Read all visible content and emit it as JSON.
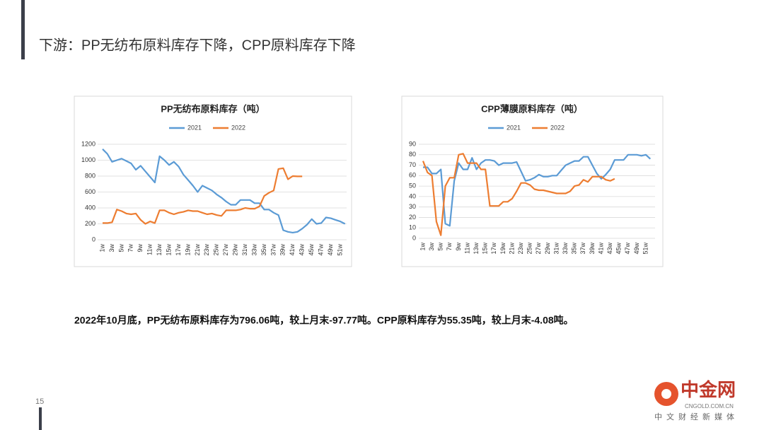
{
  "page_title": "下游：PP无纺布原料库存下降，CPP原料库存下降",
  "summary": "2022年10月底，PP无纺布原料库存为796.06吨，较上月末-97.77吨。CPP原料库存为55.35吨，较上月末-4.08吨。",
  "page_number": "15",
  "watermark": {
    "name": "中金网",
    "url": "CNGOLD.COM.CN",
    "slogan": "中文财经新媒体"
  },
  "chart_data": [
    {
      "type": "line",
      "title": "PP无纺布原料库存（吨）",
      "categories": [
        "1w",
        null,
        "3w",
        null,
        "5w",
        null,
        "7w",
        null,
        "9w",
        null,
        "11w",
        null,
        "13w",
        null,
        "15w",
        null,
        "17w",
        null,
        "19w",
        null,
        "21w",
        null,
        "23w",
        null,
        "25w",
        null,
        "27w",
        null,
        "29w",
        null,
        "31w",
        null,
        "33w",
        null,
        "35w",
        null,
        "37w",
        null,
        "39w",
        null,
        "41w",
        null,
        "43w",
        null,
        "45w",
        null,
        "47w",
        null,
        "49w",
        null,
        "51w",
        null
      ],
      "series": [
        {
          "name": "2021",
          "color": "#5b9bd5",
          "values": [
            1140,
            1080,
            980,
            1000,
            1020,
            990,
            960,
            880,
            930,
            860,
            790,
            720,
            1050,
            1000,
            940,
            980,
            920,
            820,
            750,
            680,
            600,
            680,
            650,
            620,
            570,
            530,
            480,
            440,
            440,
            500,
            500,
            500,
            460,
            460,
            380,
            380,
            340,
            310,
            120,
            100,
            90,
            100,
            140,
            190,
            260,
            200,
            210,
            280,
            270,
            250,
            230,
            200
          ]
        },
        {
          "name": "2022",
          "color": "#ed7d31",
          "values": [
            210,
            210,
            220,
            380,
            360,
            330,
            320,
            330,
            250,
            200,
            230,
            210,
            370,
            370,
            340,
            320,
            340,
            350,
            370,
            360,
            360,
            340,
            320,
            330,
            310,
            300,
            370,
            370,
            370,
            380,
            400,
            390,
            390,
            420,
            550,
            590,
            620,
            890,
            900,
            760,
            800,
            796,
            796,
            null,
            null,
            null,
            null,
            null,
            null,
            null,
            null,
            null
          ]
        }
      ],
      "ylim": [
        0,
        1200
      ],
      "yticks": [
        0,
        200,
        400,
        600,
        800,
        1000,
        1200
      ],
      "grid": true,
      "legend": "top"
    },
    {
      "type": "line",
      "title": "CPP薄膜原料库存（吨）",
      "categories": [
        "1w",
        null,
        "3w",
        null,
        "5w",
        null,
        "7w",
        null,
        "9w",
        null,
        "11w",
        null,
        "13w",
        null,
        "15w",
        null,
        "17w",
        null,
        "19w",
        null,
        "21w",
        null,
        "23w",
        null,
        "25w",
        null,
        "27w",
        null,
        "29w",
        null,
        "31w",
        null,
        "33w",
        null,
        "35w",
        null,
        "37w",
        null,
        "39w",
        null,
        "41w",
        null,
        "43w",
        null,
        "45w",
        null,
        "47w",
        null,
        "49w",
        null,
        "51w",
        null
      ],
      "series": [
        {
          "name": "2021",
          "color": "#5b9bd5",
          "values": [
            68,
            68,
            62,
            62,
            66,
            14,
            12,
            55,
            72,
            66,
            66,
            77,
            66,
            72,
            75,
            75,
            74,
            70,
            72,
            72,
            72,
            73,
            64,
            55,
            56,
            58,
            61,
            59,
            59,
            60,
            60,
            65,
            70,
            72,
            74,
            74,
            78,
            78,
            70,
            62,
            57,
            61,
            66,
            75,
            75,
            75,
            80,
            80,
            80,
            79,
            80,
            76
          ]
        },
        {
          "name": "2022",
          "color": "#ed7d31",
          "values": [
            74,
            63,
            60,
            16,
            3,
            50,
            58,
            58,
            80,
            81,
            72,
            72,
            72,
            66,
            66,
            31,
            31,
            31,
            35,
            35,
            38,
            45,
            53,
            53,
            51,
            47,
            46,
            46,
            45,
            44,
            43,
            43,
            43,
            45,
            50,
            51,
            56,
            54,
            59,
            59,
            59,
            56,
            55,
            57,
            null,
            null,
            null,
            null,
            null,
            null,
            null,
            null
          ]
        }
      ],
      "ylim": [
        0,
        90
      ],
      "yticks": [
        0,
        10,
        20,
        30,
        40,
        50,
        60,
        70,
        80,
        90
      ],
      "grid": true,
      "legend": "top"
    }
  ]
}
